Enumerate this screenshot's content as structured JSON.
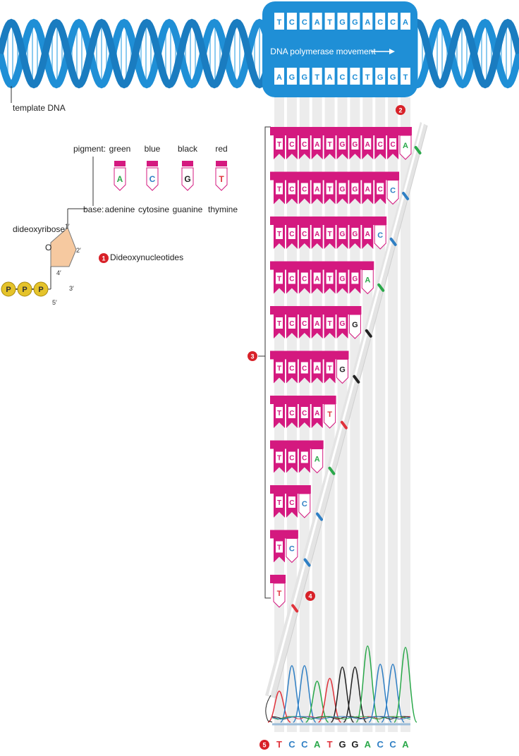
{
  "top": {
    "template_label": "template DNA",
    "movement_label": "DNA polymerase movement",
    "top_strand": [
      "T",
      "C",
      "C",
      "A",
      "T",
      "G",
      "G",
      "A",
      "C",
      "C",
      "A"
    ],
    "bottom_strand": [
      "A",
      "G",
      "G",
      "T",
      "A",
      "C",
      "C",
      "T",
      "G",
      "G",
      "T"
    ]
  },
  "legend": {
    "pigment_label": "pigment:",
    "base_label": "base:",
    "items": [
      {
        "pigment": "green",
        "letter": "A",
        "base": "adenine",
        "color": "#2aa84a"
      },
      {
        "pigment": "blue",
        "letter": "C",
        "base": "cytosine",
        "color": "#2f7fc4"
      },
      {
        "pigment": "black",
        "letter": "G",
        "base": "guanine",
        "color": "#222222"
      },
      {
        "pigment": "red",
        "letter": "T",
        "base": "thymine",
        "color": "#e0333c"
      }
    ]
  },
  "molecule": {
    "sugar_label": "dideoxyribose",
    "o_label": "O",
    "carbons": [
      "1′",
      "2′",
      "3′",
      "4′",
      "5′"
    ],
    "phosphate": "P"
  },
  "callouts": {
    "c1": {
      "num": "1",
      "text": "Dideoxynucleotides"
    },
    "c2": {
      "num": "2"
    },
    "c3": {
      "num": "3"
    },
    "c4": {
      "num": "4"
    },
    "c5": {
      "num": "5"
    }
  },
  "fragments": [
    "TCCATGGACCA",
    "TCCATGGACC",
    "TCCATGGAC",
    "TCCATGGA",
    "TCCATGG",
    "TCCATG",
    "TCCAT",
    "TCCA",
    "TCC",
    "TC",
    "T"
  ],
  "readout": [
    "T",
    "C",
    "C",
    "A",
    "T",
    "G",
    "G",
    "A",
    "C",
    "C",
    "A"
  ],
  "colors": {
    "dna_blue": "#1f8fd6",
    "magenta": "#d4197f",
    "callout_red": "#d82128",
    "sugar": "#f6c9a0",
    "phosphate": "#e5c32a",
    "A": "#2aa84a",
    "C": "#2f7fc4",
    "G": "#222222",
    "T": "#e0333c"
  }
}
